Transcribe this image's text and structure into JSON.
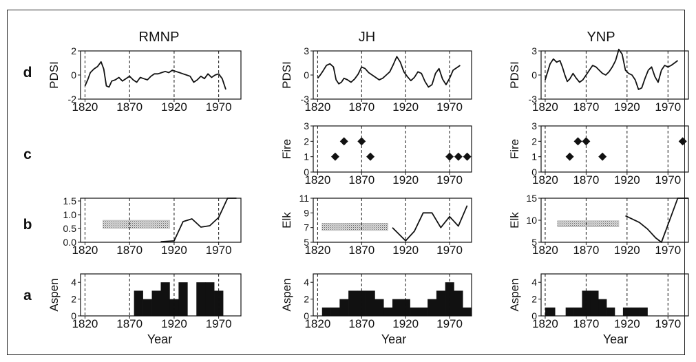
{
  "columns": [
    "RMNP",
    "JH",
    "YNP"
  ],
  "rows": [
    "d",
    "c",
    "b",
    "a"
  ],
  "x_axis_title": "Year",
  "chart_data": [
    {
      "id": "RMNP-d",
      "type": "line",
      "ylabel": "PDSI",
      "xlim": [
        1815,
        1995
      ],
      "ylim": [
        -2,
        2
      ],
      "yticks": [
        -2,
        0,
        2
      ],
      "xticks": [
        1820,
        1870,
        1920,
        1970
      ],
      "dashed_x": [
        1820,
        1870,
        1920,
        1970
      ],
      "series": [
        {
          "x": [
            1820,
            1823,
            1826,
            1830,
            1834,
            1838,
            1841,
            1844,
            1847,
            1850,
            1854,
            1858,
            1862,
            1866,
            1870,
            1874,
            1878,
            1882,
            1886,
            1890,
            1894,
            1898,
            1902,
            1906,
            1910,
            1914,
            1918,
            1922,
            1926,
            1930,
            1934,
            1938,
            1942,
            1946,
            1950,
            1954,
            1958,
            1962,
            1966,
            1970,
            1974,
            1978
          ],
          "y": [
            -0.9,
            -0.4,
            0.2,
            0.5,
            0.7,
            1.1,
            0.5,
            -0.9,
            -1.0,
            -0.5,
            -0.4,
            -0.2,
            -0.5,
            -0.3,
            -0.1,
            -0.4,
            -0.6,
            -0.2,
            -0.3,
            -0.4,
            -0.1,
            0.1,
            0.1,
            0.2,
            0.3,
            0.2,
            0.4,
            0.3,
            0.2,
            0.1,
            0.0,
            -0.1,
            -0.6,
            -0.4,
            -0.1,
            -0.3,
            0.1,
            -0.2,
            0.0,
            0.1,
            -0.3,
            -1.2
          ]
        }
      ]
    },
    {
      "id": "JH-d",
      "type": "line",
      "ylabel": "PDSI",
      "xlim": [
        1815,
        1995
      ],
      "ylim": [
        -3,
        3
      ],
      "yticks": [
        -3,
        0,
        3
      ],
      "xticks": [
        1820,
        1870,
        1920,
        1970
      ],
      "dashed_x": [
        1820,
        1870,
        1920,
        1970
      ],
      "series": [
        {
          "x": [
            1820,
            1823,
            1826,
            1830,
            1834,
            1838,
            1841,
            1844,
            1847,
            1850,
            1854,
            1858,
            1862,
            1866,
            1870,
            1874,
            1878,
            1882,
            1886,
            1890,
            1894,
            1898,
            1902,
            1906,
            1910,
            1914,
            1918,
            1922,
            1926,
            1930,
            1934,
            1938,
            1942,
            1946,
            1950,
            1954,
            1958,
            1962,
            1966,
            1970,
            1974,
            1978,
            1982
          ],
          "y": [
            -0.4,
            0.0,
            0.5,
            1.2,
            1.4,
            1.0,
            -0.6,
            -1.1,
            -0.9,
            -0.4,
            -0.6,
            -0.9,
            -0.5,
            0.1,
            1.0,
            0.8,
            0.3,
            0.0,
            -0.3,
            -0.6,
            -0.4,
            0.0,
            0.4,
            1.3,
            2.3,
            1.6,
            0.4,
            -0.2,
            -0.7,
            -0.3,
            0.4,
            0.2,
            -0.8,
            -1.5,
            -1.2,
            0.2,
            0.8,
            -0.5,
            -1.2,
            -0.4,
            0.6,
            0.9,
            1.2
          ]
        }
      ]
    },
    {
      "id": "YNP-d",
      "type": "line",
      "ylabel": "PDSI",
      "xlim": [
        1815,
        1995
      ],
      "ylim": [
        -3,
        3
      ],
      "yticks": [
        -3,
        0,
        3
      ],
      "xticks": [
        1820,
        1870,
        1920,
        1970
      ],
      "dashed_x": [
        1820,
        1870,
        1920,
        1970
      ],
      "series": [
        {
          "x": [
            1820,
            1823,
            1826,
            1830,
            1834,
            1838,
            1841,
            1844,
            1847,
            1850,
            1854,
            1858,
            1862,
            1866,
            1870,
            1874,
            1878,
            1882,
            1886,
            1890,
            1894,
            1898,
            1902,
            1906,
            1910,
            1914,
            1918,
            1922,
            1926,
            1930,
            1934,
            1938,
            1942,
            1946,
            1950,
            1954,
            1958,
            1962,
            1966,
            1970,
            1974,
            1978,
            1982
          ],
          "y": [
            -0.6,
            0.4,
            1.4,
            2.0,
            1.6,
            1.8,
            1.0,
            0.0,
            -0.8,
            -0.5,
            0.2,
            -0.4,
            -0.9,
            -0.6,
            0.0,
            0.6,
            1.2,
            1.0,
            0.6,
            0.2,
            0.0,
            0.4,
            1.0,
            1.8,
            3.2,
            2.6,
            0.6,
            0.2,
            0.0,
            -0.6,
            -1.8,
            -1.6,
            -0.4,
            0.6,
            1.0,
            -0.2,
            -0.9,
            0.6,
            1.2,
            1.0,
            1.2,
            1.5,
            1.8
          ]
        }
      ]
    },
    {
      "id": "JH-c",
      "type": "scatter",
      "ylabel": "Fire",
      "xlim": [
        1815,
        1995
      ],
      "ylim": [
        0,
        3
      ],
      "yticks": [
        0,
        1,
        2,
        3
      ],
      "xticks": [
        1820,
        1870,
        1920,
        1970
      ],
      "dashed_x": [
        1820,
        1870,
        1920,
        1970
      ],
      "series": [
        {
          "x": [
            1840,
            1850,
            1870,
            1880,
            1970,
            1980,
            1990
          ],
          "y": [
            1,
            2,
            2,
            1,
            1,
            1,
            1
          ]
        }
      ]
    },
    {
      "id": "YNP-c",
      "type": "scatter",
      "ylabel": "Fire",
      "xlim": [
        1815,
        1995
      ],
      "ylim": [
        0,
        3
      ],
      "yticks": [
        0,
        1,
        2,
        3
      ],
      "xticks": [
        1820,
        1870,
        1920,
        1970
      ],
      "dashed_x": [
        1820,
        1870,
        1920,
        1970
      ],
      "series": [
        {
          "x": [
            1850,
            1860,
            1870,
            1890,
            1988
          ],
          "y": [
            1,
            2,
            2,
            1,
            2
          ]
        }
      ]
    },
    {
      "id": "RMNP-b",
      "type": "line",
      "ylabel": "",
      "xlim": [
        1815,
        1995
      ],
      "ylim": [
        0,
        1.6
      ],
      "yticks": [
        0.0,
        0.5,
        1.0,
        1.5
      ],
      "ytick_labels": [
        "0.0",
        "0.5",
        "1.0",
        "1.5"
      ],
      "xticks": [
        1820,
        1870,
        1920,
        1970
      ],
      "dashed_x": [
        1820,
        1870,
        1920,
        1970
      ],
      "shaded_band": {
        "x": [
          1840,
          1915
        ],
        "y": [
          0.5,
          0.8
        ]
      },
      "series": [
        {
          "x": [
            1905,
            1920,
            1930,
            1940,
            1950,
            1960,
            1970,
            1980,
            1990
          ],
          "y": [
            0.02,
            0.05,
            0.75,
            0.85,
            0.55,
            0.6,
            0.9,
            1.6,
            1.6
          ]
        }
      ]
    },
    {
      "id": "JH-b",
      "type": "line",
      "ylabel": "Elk",
      "xlim": [
        1815,
        1995
      ],
      "ylim": [
        5,
        11
      ],
      "yticks": [
        5,
        7,
        9,
        11
      ],
      "xticks": [
        1820,
        1870,
        1920,
        1970
      ],
      "dashed_x": [
        1820,
        1870,
        1920,
        1970
      ],
      "shaded_band": {
        "x": [
          1825,
          1900
        ],
        "y": [
          6.6,
          7.6
        ]
      },
      "series": [
        {
          "x": [
            1905,
            1920,
            1930,
            1940,
            1950,
            1960,
            1970,
            1980,
            1990
          ],
          "y": [
            7.0,
            5.2,
            6.5,
            9.0,
            9.0,
            7.0,
            8.5,
            7.2,
            10.0
          ]
        }
      ]
    },
    {
      "id": "YNP-b",
      "type": "line",
      "ylabel": "Elk",
      "xlim": [
        1815,
        1995
      ],
      "ylim": [
        5,
        15
      ],
      "yticks": [
        5,
        10,
        15
      ],
      "xticks": [
        1820,
        1870,
        1920,
        1970
      ],
      "dashed_x": [
        1820,
        1870,
        1920,
        1970
      ],
      "shaded_band": {
        "x": [
          1835,
          1910
        ],
        "y": [
          8.5,
          9.9
        ]
      },
      "series": [
        {
          "x": [
            1918,
            1935,
            1945,
            1955,
            1962,
            1970,
            1982,
            1995
          ],
          "y": [
            11.0,
            9.5,
            8.0,
            6.0,
            5.0,
            9.0,
            15.0,
            15.0
          ]
        }
      ]
    },
    {
      "id": "RMNP-a",
      "type": "bar",
      "ylabel": "Aspen",
      "xlim": [
        1815,
        1995
      ],
      "ylim": [
        0,
        5
      ],
      "yticks": [
        0,
        2,
        4
      ],
      "xticks": [
        1820,
        1870,
        1920,
        1970
      ],
      "dashed_x": [
        1820,
        1870,
        1920,
        1970
      ],
      "bars": [
        {
          "start": 1875,
          "end": 1885,
          "value": 3
        },
        {
          "start": 1885,
          "end": 1895,
          "value": 2
        },
        {
          "start": 1895,
          "end": 1905,
          "value": 3
        },
        {
          "start": 1905,
          "end": 1915,
          "value": 4
        },
        {
          "start": 1915,
          "end": 1925,
          "value": 2
        },
        {
          "start": 1925,
          "end": 1935,
          "value": 4
        },
        {
          "start": 1945,
          "end": 1955,
          "value": 4
        },
        {
          "start": 1955,
          "end": 1965,
          "value": 4
        },
        {
          "start": 1965,
          "end": 1975,
          "value": 3
        }
      ]
    },
    {
      "id": "JH-a",
      "type": "bar",
      "ylabel": "Aspen",
      "xlim": [
        1815,
        1995
      ],
      "ylim": [
        0,
        5
      ],
      "yticks": [
        0,
        2,
        4
      ],
      "xticks": [
        1820,
        1870,
        1920,
        1970
      ],
      "dashed_x": [
        1820,
        1870,
        1920,
        1970
      ],
      "bars": [
        {
          "start": 1825,
          "end": 1835,
          "value": 1
        },
        {
          "start": 1835,
          "end": 1845,
          "value": 1
        },
        {
          "start": 1845,
          "end": 1855,
          "value": 2
        },
        {
          "start": 1855,
          "end": 1865,
          "value": 3
        },
        {
          "start": 1865,
          "end": 1875,
          "value": 3
        },
        {
          "start": 1875,
          "end": 1885,
          "value": 3
        },
        {
          "start": 1885,
          "end": 1895,
          "value": 2
        },
        {
          "start": 1895,
          "end": 1905,
          "value": 1
        },
        {
          "start": 1905,
          "end": 1915,
          "value": 2
        },
        {
          "start": 1915,
          "end": 1925,
          "value": 2
        },
        {
          "start": 1925,
          "end": 1935,
          "value": 1
        },
        {
          "start": 1935,
          "end": 1945,
          "value": 1
        },
        {
          "start": 1945,
          "end": 1955,
          "value": 2
        },
        {
          "start": 1955,
          "end": 1965,
          "value": 3
        },
        {
          "start": 1965,
          "end": 1975,
          "value": 4
        },
        {
          "start": 1975,
          "end": 1985,
          "value": 3
        },
        {
          "start": 1985,
          "end": 1995,
          "value": 1
        }
      ]
    },
    {
      "id": "YNP-a",
      "type": "bar",
      "ylabel": "Aspen",
      "xlim": [
        1815,
        1995
      ],
      "ylim": [
        0,
        5
      ],
      "yticks": [
        0,
        2,
        4
      ],
      "xticks": [
        1820,
        1870,
        1920,
        1970
      ],
      "dashed_x": [
        1820,
        1870,
        1920,
        1970
      ],
      "bars": [
        {
          "start": 1820,
          "end": 1832,
          "value": 1
        },
        {
          "start": 1845,
          "end": 1855,
          "value": 1
        },
        {
          "start": 1855,
          "end": 1865,
          "value": 1
        },
        {
          "start": 1865,
          "end": 1875,
          "value": 3
        },
        {
          "start": 1875,
          "end": 1885,
          "value": 3
        },
        {
          "start": 1885,
          "end": 1895,
          "value": 2
        },
        {
          "start": 1895,
          "end": 1905,
          "value": 1
        },
        {
          "start": 1915,
          "end": 1925,
          "value": 1
        },
        {
          "start": 1925,
          "end": 1935,
          "value": 1
        },
        {
          "start": 1935,
          "end": 1945,
          "value": 1
        }
      ]
    }
  ]
}
